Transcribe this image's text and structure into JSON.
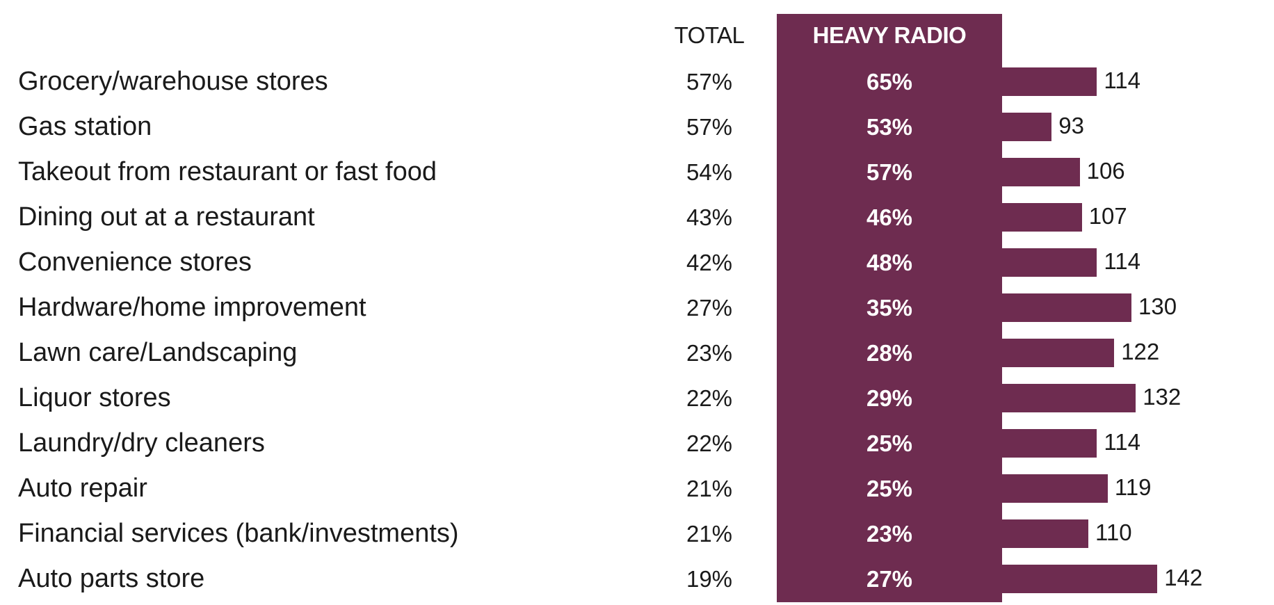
{
  "chart_data": {
    "type": "table",
    "columns": [
      "TOTAL",
      "HEAVY RADIO"
    ],
    "categories": [
      "Grocery/warehouse stores",
      "Gas station",
      "Takeout from restaurant or fast food",
      "Dining out at a restaurant",
      "Convenience stores",
      "Hardware/home improvement",
      "Lawn care/Landscaping",
      "Liquor stores",
      "Laundry/dry cleaners",
      "Auto repair",
      "Financial services (bank/investments)",
      "Auto parts store"
    ],
    "series": [
      {
        "name": "TOTAL",
        "values": [
          57,
          57,
          54,
          43,
          42,
          27,
          23,
          22,
          22,
          21,
          21,
          19
        ],
        "labels": [
          "57%",
          "57%",
          "54%",
          "43%",
          "42%",
          "27%",
          "23%",
          "22%",
          "22%",
          "21%",
          "21%",
          "19%"
        ]
      },
      {
        "name": "HEAVY RADIO",
        "values": [
          65,
          53,
          57,
          46,
          48,
          35,
          28,
          29,
          25,
          25,
          23,
          27
        ],
        "labels": [
          "65%",
          "53%",
          "57%",
          "46%",
          "48%",
          "35%",
          "28%",
          "29%",
          "25%",
          "25%",
          "23%",
          "27%"
        ]
      },
      {
        "values": [
          114,
          93,
          106,
          107,
          114,
          130,
          122,
          132,
          114,
          119,
          110,
          142
        ],
        "labels": [
          "114",
          "93",
          "106",
          "107",
          "114",
          "130",
          "122",
          "132",
          "114",
          "119",
          "110",
          "142"
        ]
      }
    ],
    "colors": {
      "heavy_radio": "#6e2c50",
      "text": "#1a1a1a",
      "heavy_text": "#ffffff"
    }
  }
}
